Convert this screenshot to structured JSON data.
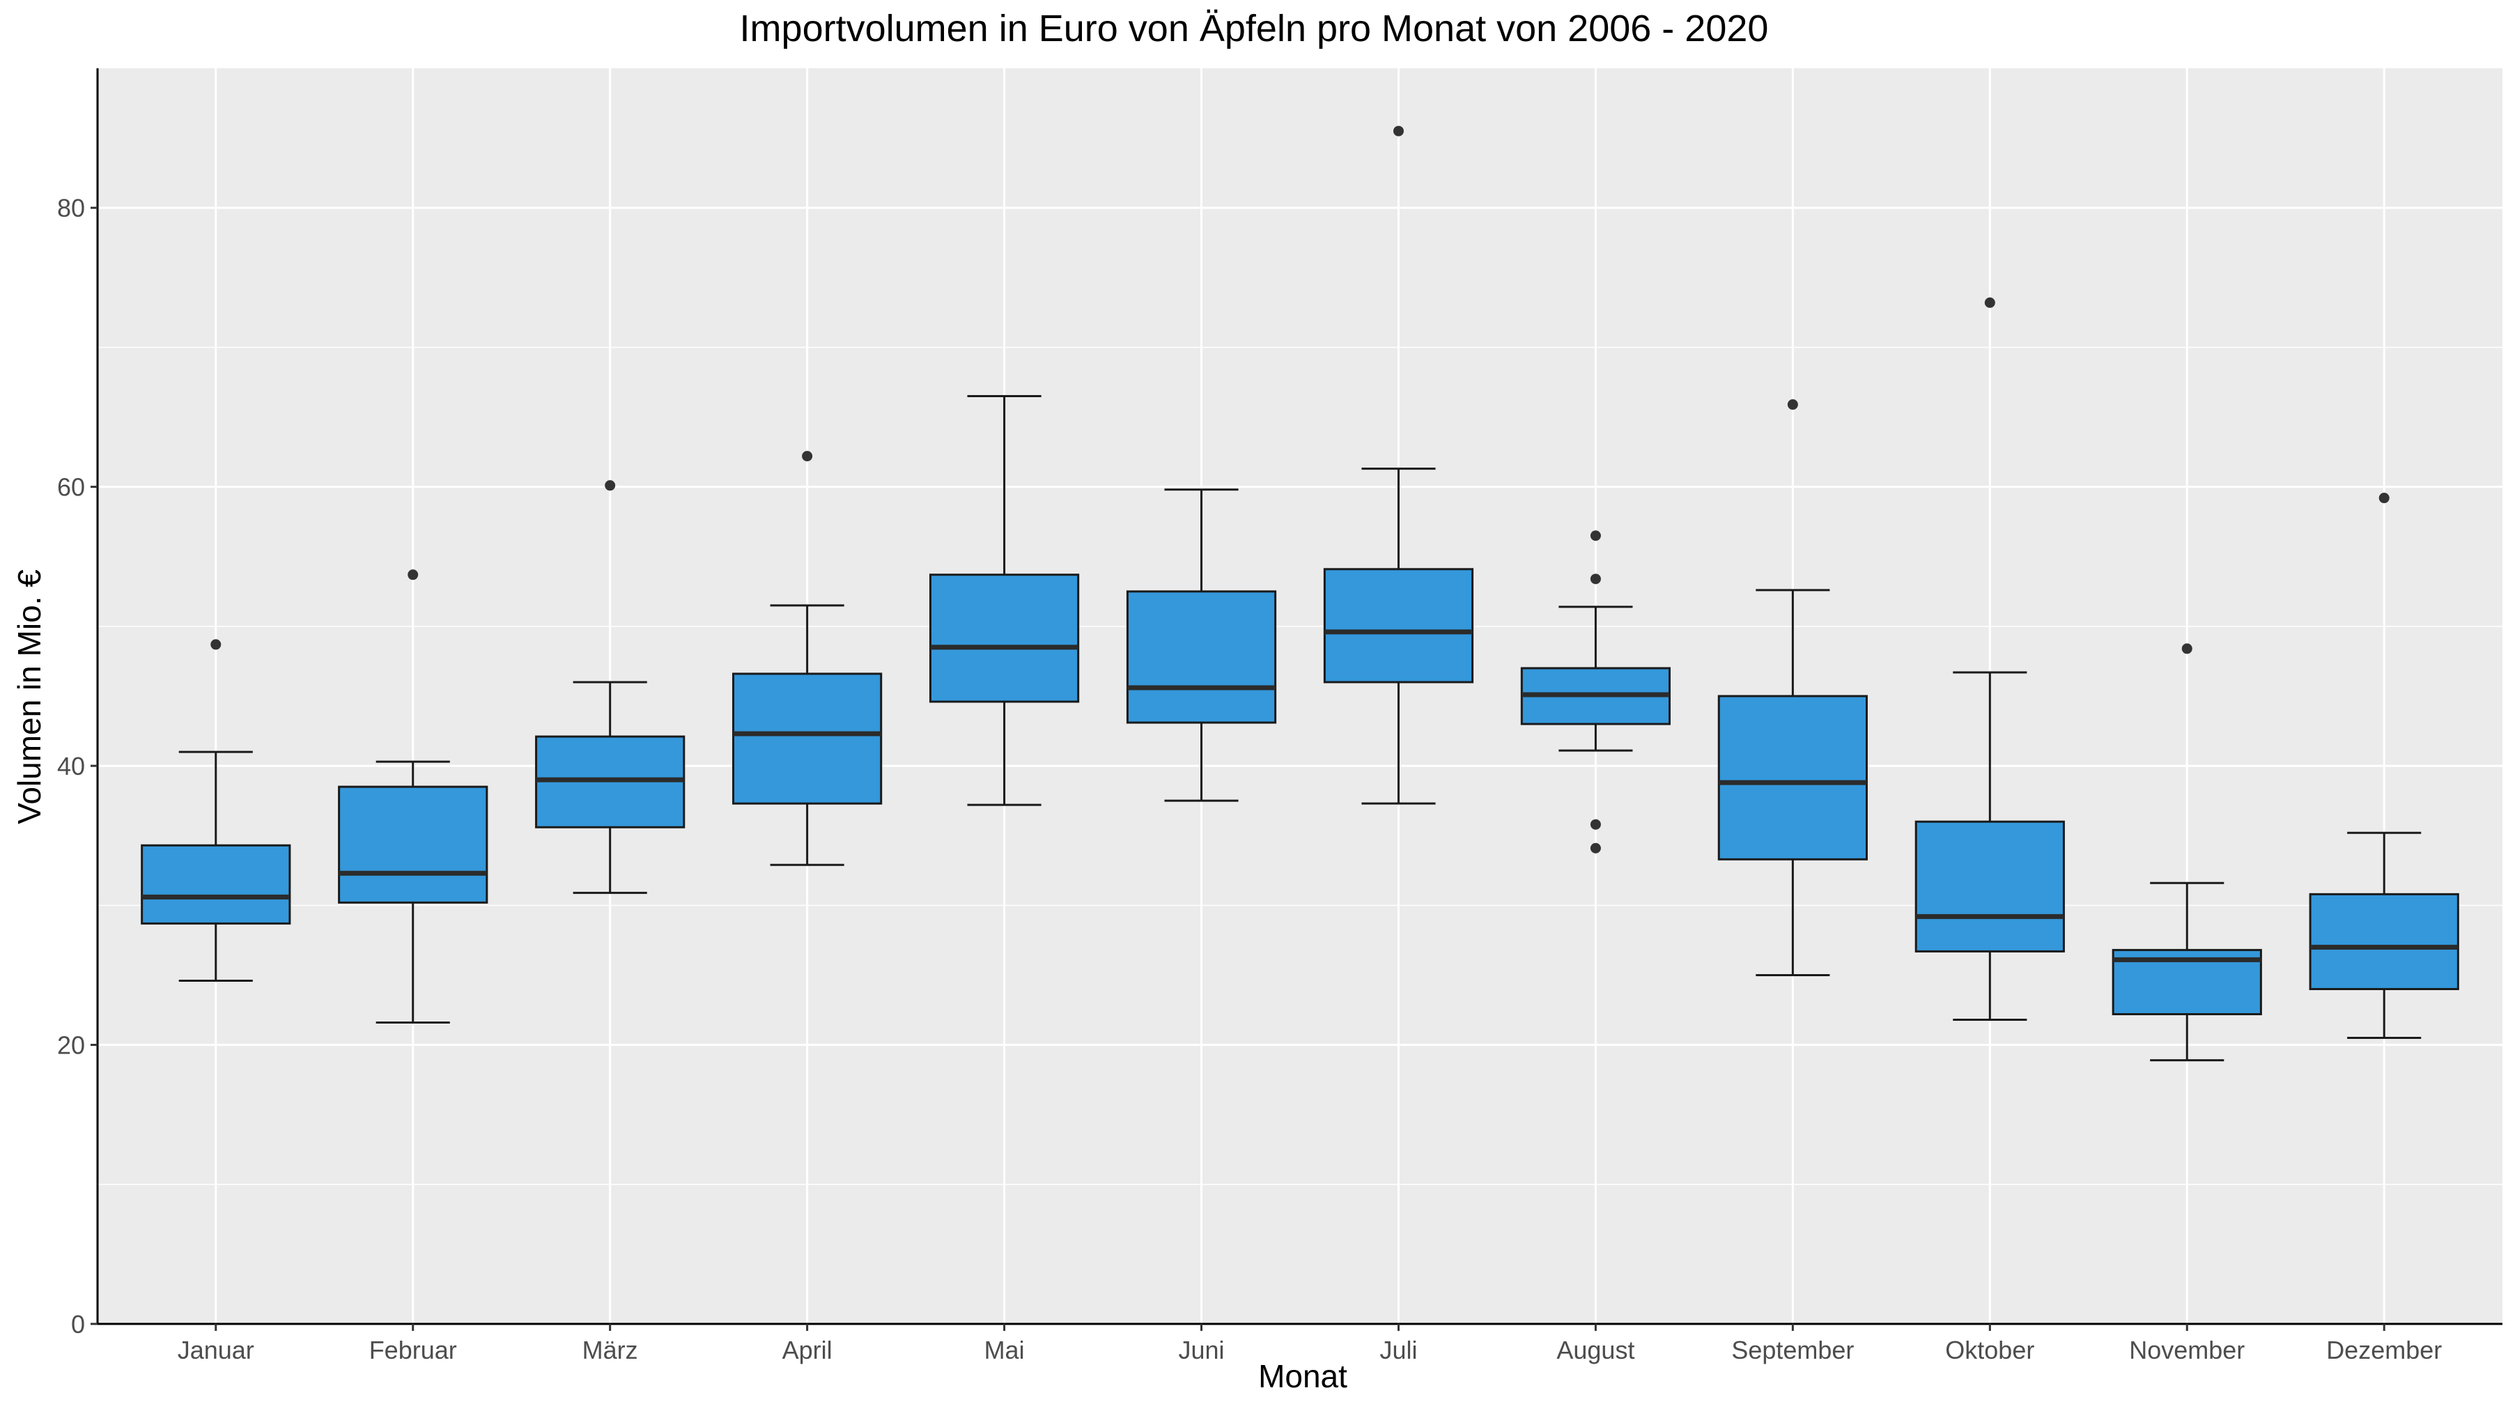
{
  "chart_data": {
    "type": "boxplot",
    "title": "Importvolumen in Euro von Äpfeln pro Monat von 2006 - 2020",
    "xlabel": "Monat",
    "ylabel": "Volumen in Mio. €",
    "ylim": [
      0,
      90
    ],
    "yticks": [
      0,
      20,
      40,
      60,
      80
    ],
    "grid": true,
    "legend": "none",
    "colors": {
      "box_fill": "#3498db",
      "box_stroke": "#1a1a1a",
      "panel_bg": "#ebebeb",
      "grid": "#ffffff",
      "outlier": "#333333"
    },
    "categories": [
      "Januar",
      "Februar",
      "März",
      "April",
      "Mai",
      "Juni",
      "Juli",
      "August",
      "September",
      "Oktober",
      "November",
      "Dezember"
    ],
    "boxes": [
      {
        "category": "Januar",
        "whisker_low": 24.6,
        "q1": 28.7,
        "median": 30.6,
        "q3": 34.3,
        "whisker_high": 41.0,
        "outliers": [
          48.7
        ]
      },
      {
        "category": "Februar",
        "whisker_low": 21.6,
        "q1": 30.2,
        "median": 32.3,
        "q3": 38.5,
        "whisker_high": 40.3,
        "outliers": [
          53.7
        ]
      },
      {
        "category": "März",
        "whisker_low": 30.9,
        "q1": 35.6,
        "median": 39.0,
        "q3": 42.1,
        "whisker_high": 46.0,
        "outliers": [
          60.1
        ]
      },
      {
        "category": "April",
        "whisker_low": 32.9,
        "q1": 37.3,
        "median": 42.3,
        "q3": 46.6,
        "whisker_high": 51.5,
        "outliers": [
          62.2
        ]
      },
      {
        "category": "Mai",
        "whisker_low": 37.2,
        "q1": 44.6,
        "median": 48.5,
        "q3": 53.7,
        "whisker_high": 66.5,
        "outliers": []
      },
      {
        "category": "Juni",
        "whisker_low": 37.5,
        "q1": 43.1,
        "median": 45.6,
        "q3": 52.5,
        "whisker_high": 59.8,
        "outliers": []
      },
      {
        "category": "Juli",
        "whisker_low": 37.3,
        "q1": 46.0,
        "median": 49.6,
        "q3": 54.1,
        "whisker_high": 61.3,
        "outliers": [
          85.5
        ]
      },
      {
        "category": "August",
        "whisker_low": 41.1,
        "q1": 43.0,
        "median": 45.1,
        "q3": 47.0,
        "whisker_high": 51.4,
        "outliers": [
          56.5,
          53.4,
          35.8,
          34.1
        ]
      },
      {
        "category": "September",
        "whisker_low": 25.0,
        "q1": 33.3,
        "median": 38.8,
        "q3": 45.0,
        "whisker_high": 52.6,
        "outliers": [
          65.9
        ]
      },
      {
        "category": "Oktober",
        "whisker_low": 21.8,
        "q1": 26.7,
        "median": 29.2,
        "q3": 36.0,
        "whisker_high": 46.7,
        "outliers": [
          73.2
        ]
      },
      {
        "category": "November",
        "whisker_low": 18.9,
        "q1": 22.2,
        "median": 26.1,
        "q3": 26.8,
        "whisker_high": 31.6,
        "outliers": [
          48.4
        ]
      },
      {
        "category": "Dezember",
        "whisker_low": 20.5,
        "q1": 24.0,
        "median": 27.0,
        "q3": 30.8,
        "whisker_high": 35.2,
        "outliers": [
          59.2
        ]
      }
    ]
  }
}
